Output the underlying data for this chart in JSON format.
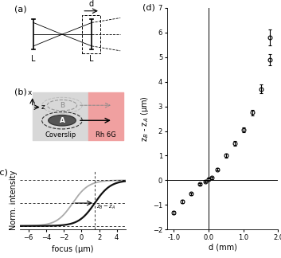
{
  "panel_d": {
    "x": [
      -1.0,
      -0.75,
      -0.5,
      -0.25,
      -0.1,
      0.0,
      0.1,
      0.25,
      0.5,
      0.75,
      1.0,
      1.25,
      1.5,
      1.75
    ],
    "y": [
      -1.3,
      -0.85,
      -0.55,
      -0.15,
      -0.05,
      0.05,
      0.1,
      0.45,
      1.0,
      1.5,
      2.05,
      2.75,
      3.7,
      4.9
    ],
    "yerr": [
      0.07,
      0.06,
      0.05,
      0.04,
      0.04,
      0.04,
      0.04,
      0.05,
      0.08,
      0.09,
      0.1,
      0.12,
      0.18,
      0.22
    ],
    "extra_x": [
      1.75
    ],
    "extra_y": [
      5.8
    ],
    "extra_yerr": [
      0.32
    ],
    "xlabel": "d (mm)",
    "ylabel": "z$_B$ - z$_A$ (μm)",
    "title": "(d)",
    "xlim": [
      -1.2,
      2.0
    ],
    "ylim": [
      -2.0,
      7.0
    ],
    "xticks": [
      -1.0,
      0.0,
      1.0,
      2.0
    ],
    "xtick_labels": [
      "-1.0",
      "0.0",
      "1.0",
      "2.0"
    ],
    "yticks": [
      -2,
      -1,
      0,
      1,
      2,
      3,
      4,
      5,
      6,
      7
    ]
  },
  "panel_c": {
    "x0_light": -1.0,
    "x0_dark": 1.5,
    "k": 1.1,
    "xlabel": "focus (μm)",
    "ylabel": "Norm. intensity",
    "title": "(c)",
    "xlim": [
      -7,
      5
    ],
    "ylim": [
      -0.08,
      1.2
    ],
    "xticks": [
      -6,
      -4,
      -2,
      0,
      2,
      4
    ]
  },
  "colors": {
    "light_curve": "#aaaaaa",
    "dark_curve": "#111111",
    "pink_bg": "#f0a0a0",
    "grey_bg": "#d8d8d8"
  }
}
